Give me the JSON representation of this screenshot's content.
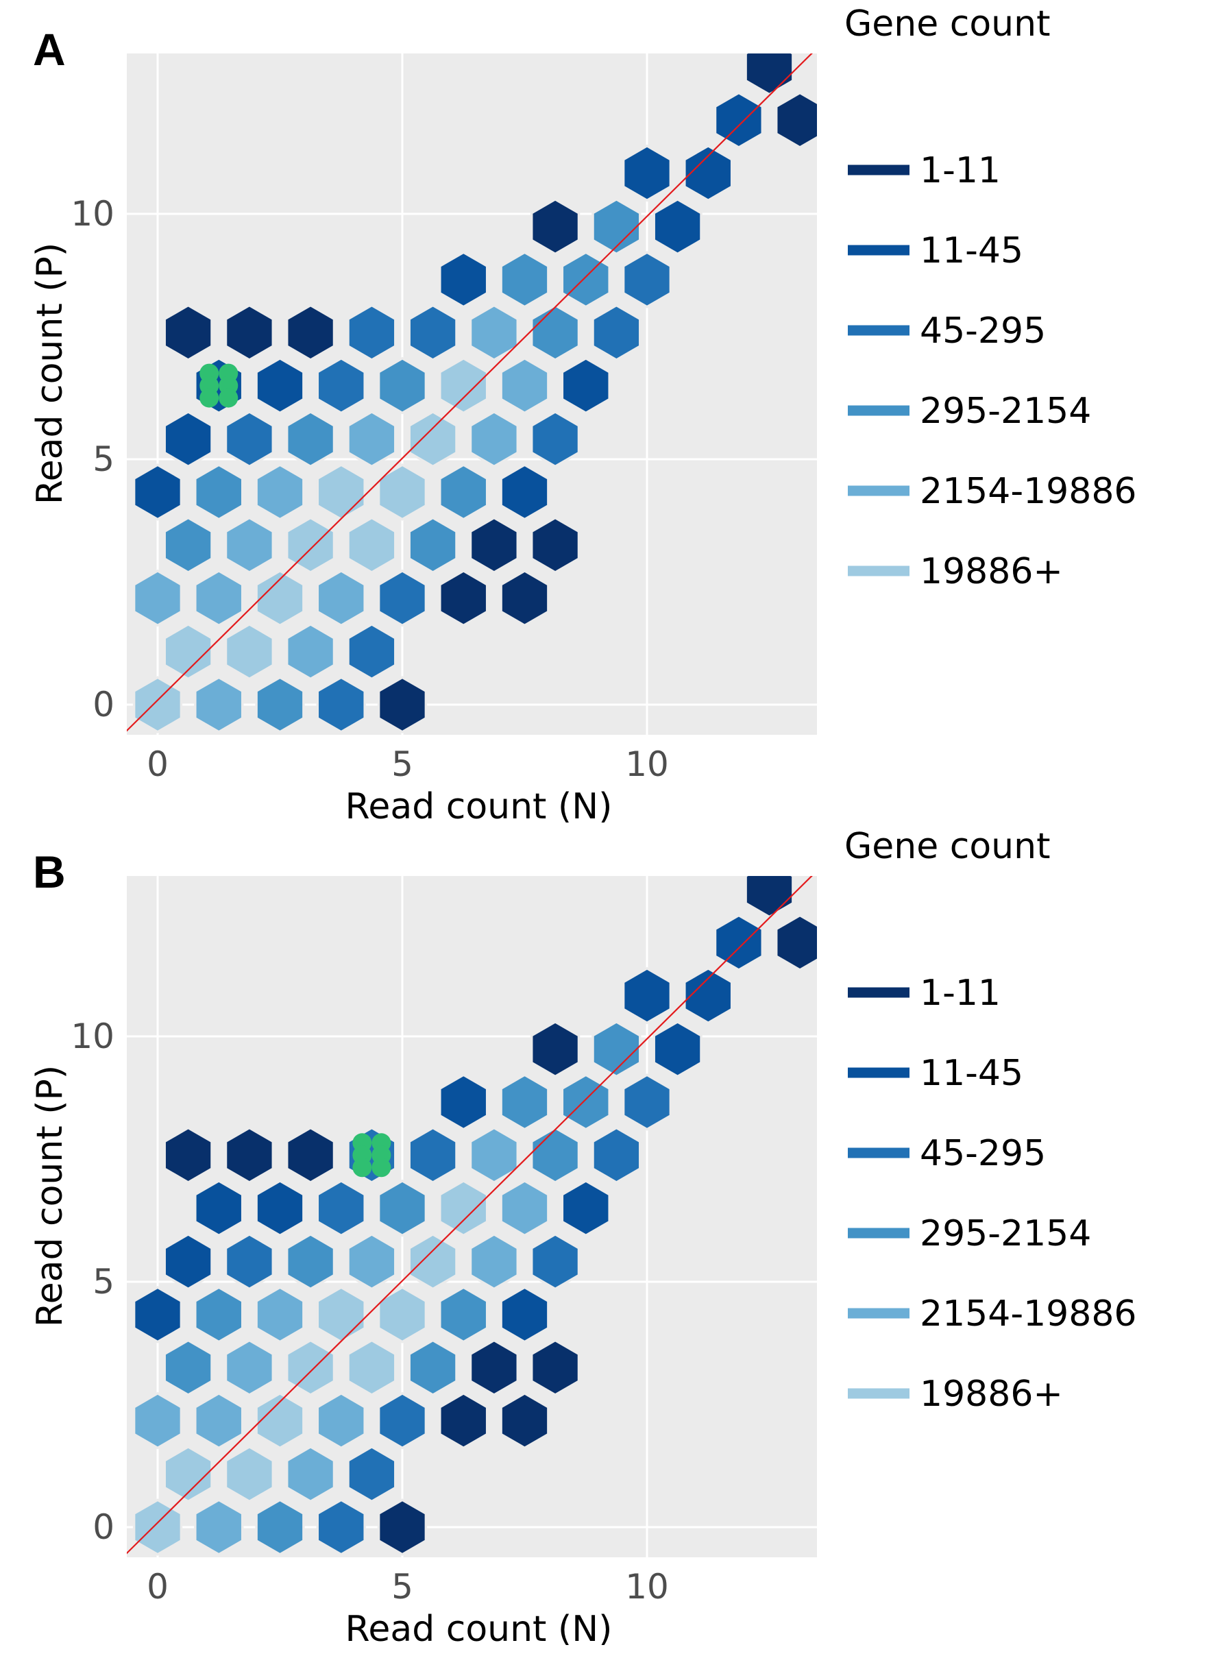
{
  "chart_data": [
    {
      "type": "heatmap",
      "panel_label": "A",
      "xlabel": "Read count (N)",
      "ylabel": "Read count (P)",
      "xticks": [
        0,
        5,
        10
      ],
      "yticks": [
        0,
        5,
        10
      ],
      "xlim": [
        -0.65,
        13.5
      ],
      "ylim": [
        -0.55,
        13.4
      ],
      "legend_title": "Gene count",
      "legend_position": "right",
      "diagonal_line": {
        "x0": -0.65,
        "y0": -0.55,
        "x1": 13.5,
        "y1": 13.4,
        "color": "#e31a1c"
      },
      "legend": [
        {
          "label": "1-11",
          "color": "#08306b"
        },
        {
          "label": "11-45",
          "color": "#08519c"
        },
        {
          "label": "45-295",
          "color": "#2171b5"
        },
        {
          "label": "295-2154",
          "color": "#4292c6"
        },
        {
          "label": "2154-19886",
          "color": "#6baed6"
        },
        {
          "label": "19886+",
          "color": "#9ecae1"
        }
      ],
      "hexes": [
        {
          "x": 0.0,
          "y": 0.0,
          "bin": 5
        },
        {
          "x": 1.25,
          "y": 0.0,
          "bin": 4
        },
        {
          "x": 2.5,
          "y": 0.0,
          "bin": 3
        },
        {
          "x": 3.75,
          "y": 0.0,
          "bin": 2
        },
        {
          "x": 5.0,
          "y": 0.0,
          "bin": 0
        },
        {
          "x": 0.625,
          "y": 1.08,
          "bin": 5
        },
        {
          "x": 1.875,
          "y": 1.08,
          "bin": 5
        },
        {
          "x": 3.125,
          "y": 1.08,
          "bin": 4
        },
        {
          "x": 4.375,
          "y": 1.08,
          "bin": 2
        },
        {
          "x": 0.0,
          "y": 2.17,
          "bin": 4
        },
        {
          "x": 1.25,
          "y": 2.17,
          "bin": 4
        },
        {
          "x": 2.5,
          "y": 2.17,
          "bin": 5
        },
        {
          "x": 3.75,
          "y": 2.17,
          "bin": 4
        },
        {
          "x": 5.0,
          "y": 2.17,
          "bin": 2
        },
        {
          "x": 6.25,
          "y": 2.17,
          "bin": 0
        },
        {
          "x": 7.5,
          "y": 2.17,
          "bin": 0
        },
        {
          "x": 0.625,
          "y": 3.25,
          "bin": 3
        },
        {
          "x": 1.875,
          "y": 3.25,
          "bin": 4
        },
        {
          "x": 3.125,
          "y": 3.25,
          "bin": 5
        },
        {
          "x": 4.375,
          "y": 3.25,
          "bin": 5
        },
        {
          "x": 5.625,
          "y": 3.25,
          "bin": 3
        },
        {
          "x": 6.875,
          "y": 3.25,
          "bin": 0
        },
        {
          "x": 8.125,
          "y": 3.25,
          "bin": 0
        },
        {
          "x": 0.0,
          "y": 4.33,
          "bin": 1
        },
        {
          "x": 1.25,
          "y": 4.33,
          "bin": 3
        },
        {
          "x": 2.5,
          "y": 4.33,
          "bin": 4
        },
        {
          "x": 3.75,
          "y": 4.33,
          "bin": 5
        },
        {
          "x": 5.0,
          "y": 4.33,
          "bin": 5
        },
        {
          "x": 6.25,
          "y": 4.33,
          "bin": 3
        },
        {
          "x": 7.5,
          "y": 4.33,
          "bin": 1
        },
        {
          "x": 0.625,
          "y": 5.41,
          "bin": 1
        },
        {
          "x": 1.875,
          "y": 5.41,
          "bin": 2
        },
        {
          "x": 3.125,
          "y": 5.41,
          "bin": 3
        },
        {
          "x": 4.375,
          "y": 5.41,
          "bin": 4
        },
        {
          "x": 5.625,
          "y": 5.41,
          "bin": 5
        },
        {
          "x": 6.875,
          "y": 5.41,
          "bin": 4
        },
        {
          "x": 8.125,
          "y": 5.41,
          "bin": 2
        },
        {
          "x": 1.25,
          "y": 6.5,
          "bin": 1
        },
        {
          "x": 2.5,
          "y": 6.5,
          "bin": 1
        },
        {
          "x": 3.75,
          "y": 6.5,
          "bin": 2
        },
        {
          "x": 5.0,
          "y": 6.5,
          "bin": 3
        },
        {
          "x": 6.25,
          "y": 6.5,
          "bin": 5
        },
        {
          "x": 7.5,
          "y": 6.5,
          "bin": 4
        },
        {
          "x": 8.75,
          "y": 6.5,
          "bin": 1
        },
        {
          "x": 0.625,
          "y": 7.58,
          "bin": 0
        },
        {
          "x": 1.875,
          "y": 7.58,
          "bin": 0
        },
        {
          "x": 3.125,
          "y": 7.58,
          "bin": 0
        },
        {
          "x": 4.375,
          "y": 7.58,
          "bin": 2
        },
        {
          "x": 5.625,
          "y": 7.58,
          "bin": 2
        },
        {
          "x": 6.875,
          "y": 7.58,
          "bin": 4
        },
        {
          "x": 8.125,
          "y": 7.58,
          "bin": 3
        },
        {
          "x": 9.375,
          "y": 7.58,
          "bin": 2
        },
        {
          "x": 6.25,
          "y": 8.66,
          "bin": 1
        },
        {
          "x": 7.5,
          "y": 8.66,
          "bin": 3
        },
        {
          "x": 8.75,
          "y": 8.66,
          "bin": 3
        },
        {
          "x": 10.0,
          "y": 8.66,
          "bin": 2
        },
        {
          "x": 8.125,
          "y": 9.74,
          "bin": 0
        },
        {
          "x": 9.375,
          "y": 9.74,
          "bin": 3
        },
        {
          "x": 10.625,
          "y": 9.74,
          "bin": 1
        },
        {
          "x": 10.0,
          "y": 10.83,
          "bin": 1
        },
        {
          "x": 11.25,
          "y": 10.83,
          "bin": 1
        },
        {
          "x": 11.875,
          "y": 11.91,
          "bin": 1
        },
        {
          "x": 13.125,
          "y": 11.91,
          "bin": 0
        },
        {
          "x": 12.5,
          "y": 12.99,
          "bin": 0
        }
      ],
      "highlight": {
        "x": 1.25,
        "y": 6.5,
        "color": "#2fbf71"
      }
    },
    {
      "type": "heatmap",
      "panel_label": "B",
      "xlabel": "Read count (N)",
      "ylabel": "Read count (P)",
      "xticks": [
        0,
        5,
        10
      ],
      "yticks": [
        0,
        5,
        10
      ],
      "xlim": [
        -0.65,
        13.5
      ],
      "ylim": [
        -0.55,
        13.4
      ],
      "legend_title": "Gene count",
      "legend_position": "right",
      "diagonal_line": {
        "x0": -0.65,
        "y0": -0.55,
        "x1": 13.5,
        "y1": 13.4,
        "color": "#e31a1c"
      },
      "legend": [
        {
          "label": "1-11",
          "color": "#08306b"
        },
        {
          "label": "11-45",
          "color": "#08519c"
        },
        {
          "label": "45-295",
          "color": "#2171b5"
        },
        {
          "label": "295-2154",
          "color": "#4292c6"
        },
        {
          "label": "2154-19886",
          "color": "#6baed6"
        },
        {
          "label": "19886+",
          "color": "#9ecae1"
        }
      ],
      "hexes": [
        {
          "x": 0.0,
          "y": 0.0,
          "bin": 5
        },
        {
          "x": 1.25,
          "y": 0.0,
          "bin": 4
        },
        {
          "x": 2.5,
          "y": 0.0,
          "bin": 3
        },
        {
          "x": 3.75,
          "y": 0.0,
          "bin": 2
        },
        {
          "x": 5.0,
          "y": 0.0,
          "bin": 0
        },
        {
          "x": 0.625,
          "y": 1.08,
          "bin": 5
        },
        {
          "x": 1.875,
          "y": 1.08,
          "bin": 5
        },
        {
          "x": 3.125,
          "y": 1.08,
          "bin": 4
        },
        {
          "x": 4.375,
          "y": 1.08,
          "bin": 2
        },
        {
          "x": 0.0,
          "y": 2.17,
          "bin": 4
        },
        {
          "x": 1.25,
          "y": 2.17,
          "bin": 4
        },
        {
          "x": 2.5,
          "y": 2.17,
          "bin": 5
        },
        {
          "x": 3.75,
          "y": 2.17,
          "bin": 4
        },
        {
          "x": 5.0,
          "y": 2.17,
          "bin": 2
        },
        {
          "x": 6.25,
          "y": 2.17,
          "bin": 0
        },
        {
          "x": 7.5,
          "y": 2.17,
          "bin": 0
        },
        {
          "x": 0.625,
          "y": 3.25,
          "bin": 3
        },
        {
          "x": 1.875,
          "y": 3.25,
          "bin": 4
        },
        {
          "x": 3.125,
          "y": 3.25,
          "bin": 5
        },
        {
          "x": 4.375,
          "y": 3.25,
          "bin": 5
        },
        {
          "x": 5.625,
          "y": 3.25,
          "bin": 3
        },
        {
          "x": 6.875,
          "y": 3.25,
          "bin": 0
        },
        {
          "x": 8.125,
          "y": 3.25,
          "bin": 0
        },
        {
          "x": 0.0,
          "y": 4.33,
          "bin": 1
        },
        {
          "x": 1.25,
          "y": 4.33,
          "bin": 3
        },
        {
          "x": 2.5,
          "y": 4.33,
          "bin": 4
        },
        {
          "x": 3.75,
          "y": 4.33,
          "bin": 5
        },
        {
          "x": 5.0,
          "y": 4.33,
          "bin": 5
        },
        {
          "x": 6.25,
          "y": 4.33,
          "bin": 3
        },
        {
          "x": 7.5,
          "y": 4.33,
          "bin": 1
        },
        {
          "x": 0.625,
          "y": 5.41,
          "bin": 1
        },
        {
          "x": 1.875,
          "y": 5.41,
          "bin": 2
        },
        {
          "x": 3.125,
          "y": 5.41,
          "bin": 3
        },
        {
          "x": 4.375,
          "y": 5.41,
          "bin": 4
        },
        {
          "x": 5.625,
          "y": 5.41,
          "bin": 5
        },
        {
          "x": 6.875,
          "y": 5.41,
          "bin": 4
        },
        {
          "x": 8.125,
          "y": 5.41,
          "bin": 2
        },
        {
          "x": 1.25,
          "y": 6.5,
          "bin": 1
        },
        {
          "x": 2.5,
          "y": 6.5,
          "bin": 1
        },
        {
          "x": 3.75,
          "y": 6.5,
          "bin": 2
        },
        {
          "x": 5.0,
          "y": 6.5,
          "bin": 3
        },
        {
          "x": 6.25,
          "y": 6.5,
          "bin": 5
        },
        {
          "x": 7.5,
          "y": 6.5,
          "bin": 4
        },
        {
          "x": 8.75,
          "y": 6.5,
          "bin": 1
        },
        {
          "x": 0.625,
          "y": 7.58,
          "bin": 0
        },
        {
          "x": 1.875,
          "y": 7.58,
          "bin": 0
        },
        {
          "x": 3.125,
          "y": 7.58,
          "bin": 0
        },
        {
          "x": 4.375,
          "y": 7.58,
          "bin": 2
        },
        {
          "x": 5.625,
          "y": 7.58,
          "bin": 2
        },
        {
          "x": 6.875,
          "y": 7.58,
          "bin": 4
        },
        {
          "x": 8.125,
          "y": 7.58,
          "bin": 3
        },
        {
          "x": 9.375,
          "y": 7.58,
          "bin": 2
        },
        {
          "x": 6.25,
          "y": 8.66,
          "bin": 1
        },
        {
          "x": 7.5,
          "y": 8.66,
          "bin": 3
        },
        {
          "x": 8.75,
          "y": 8.66,
          "bin": 3
        },
        {
          "x": 10.0,
          "y": 8.66,
          "bin": 2
        },
        {
          "x": 8.125,
          "y": 9.74,
          "bin": 0
        },
        {
          "x": 9.375,
          "y": 9.74,
          "bin": 3
        },
        {
          "x": 10.625,
          "y": 9.74,
          "bin": 1
        },
        {
          "x": 10.0,
          "y": 10.83,
          "bin": 1
        },
        {
          "x": 11.25,
          "y": 10.83,
          "bin": 1
        },
        {
          "x": 11.875,
          "y": 11.91,
          "bin": 1
        },
        {
          "x": 13.125,
          "y": 11.91,
          "bin": 0
        },
        {
          "x": 12.5,
          "y": 12.99,
          "bin": 0
        }
      ],
      "highlight": {
        "x": 4.375,
        "y": 7.58,
        "color": "#2fbf71"
      }
    }
  ]
}
